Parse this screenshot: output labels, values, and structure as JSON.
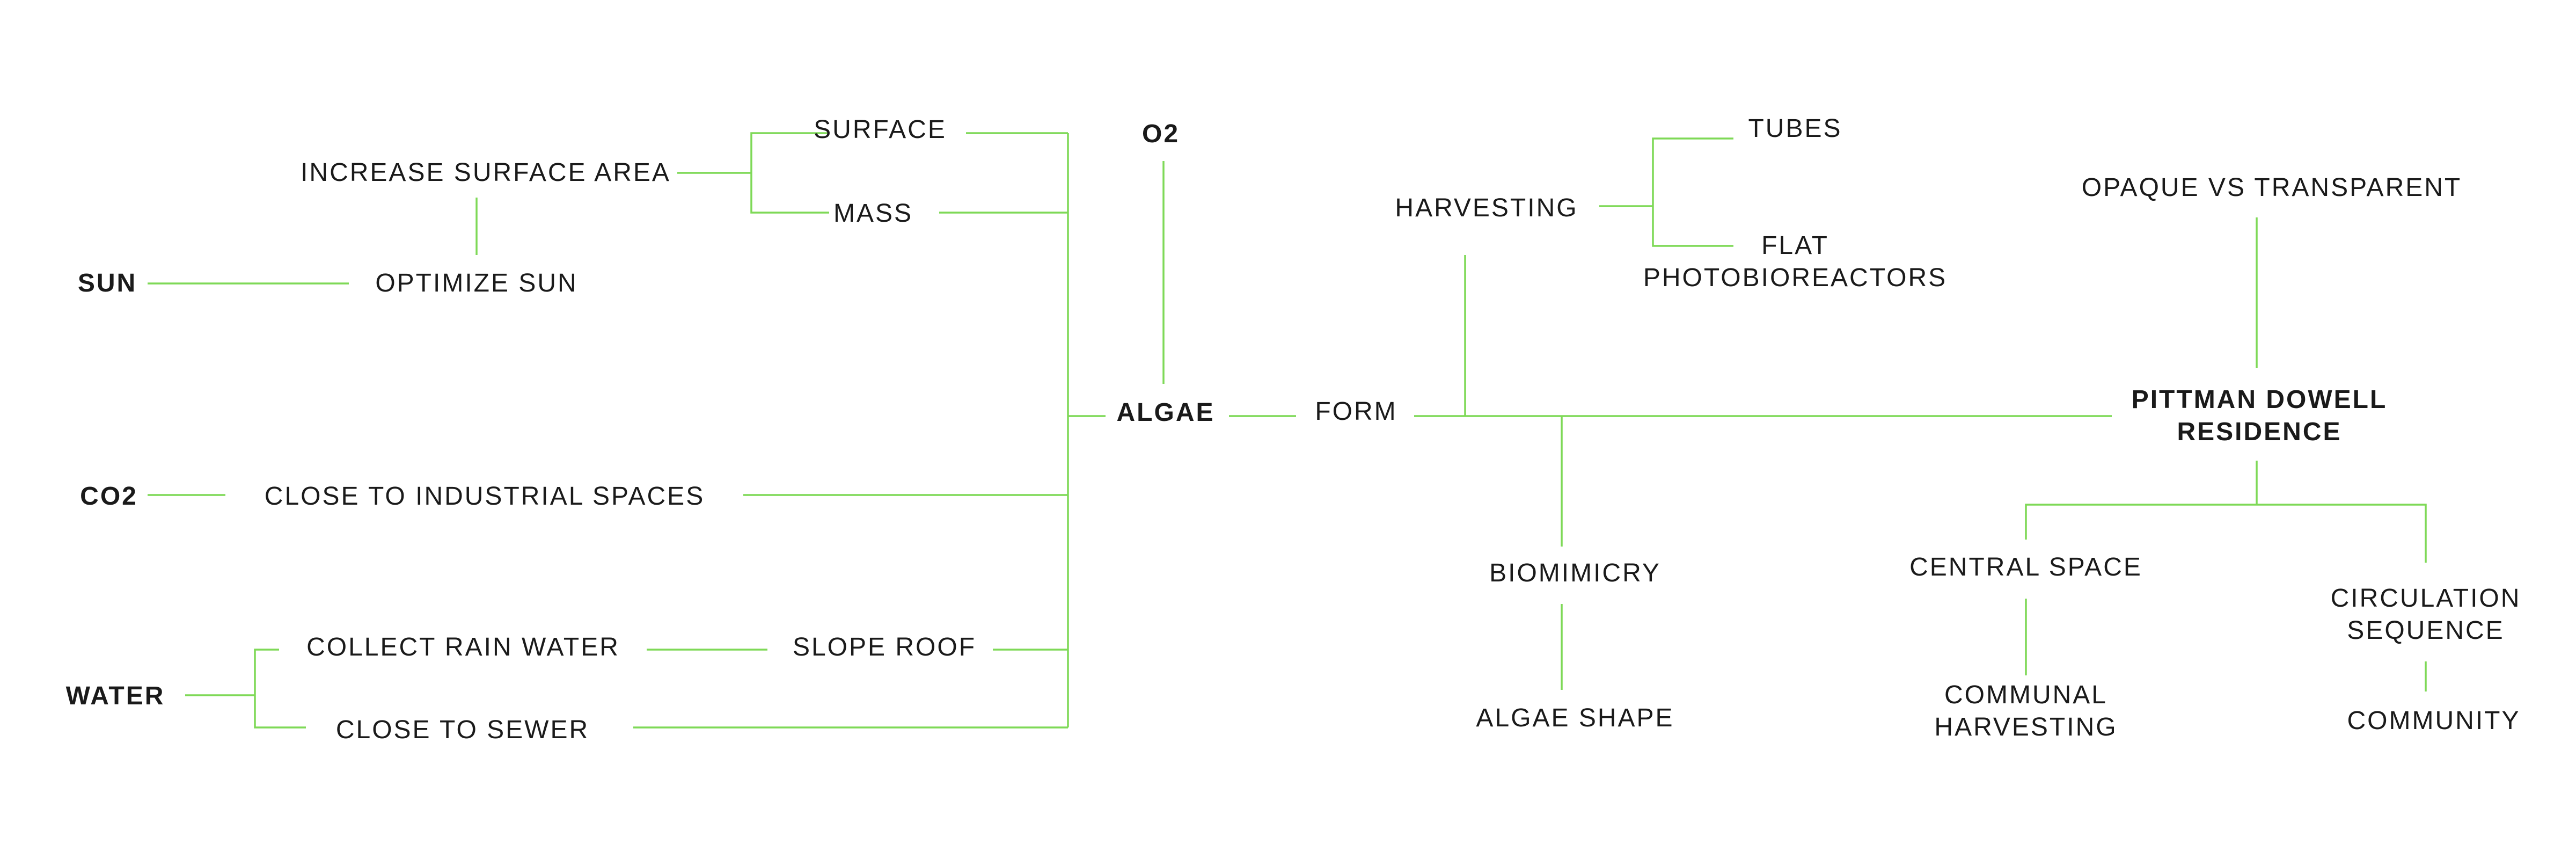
{
  "line_color": "#7ed957",
  "text_color": "#1a1a1a",
  "nodes": {
    "sun": "SUN",
    "optimize_sun": "OPTIMIZE SUN",
    "increase_surface_area": "INCREASE SURFACE AREA",
    "surface": "SURFACE",
    "mass": "MASS",
    "co2": "CO2",
    "close_to_industrial": "CLOSE TO INDUSTRIAL SPACES",
    "water": "WATER",
    "collect_rain_water": "COLLECT RAIN WATER",
    "slope_roof": "SLOPE ROOF",
    "close_to_sewer": "CLOSE TO SEWER",
    "o2": "O2",
    "algae": "ALGAE",
    "form": "FORM",
    "harvesting": "HARVESTING",
    "tubes": "TUBES",
    "flat_line1": "FLAT",
    "flat_line2": "PHOTOBIOREACTORS",
    "biomimicry": "BIOMIMICRY",
    "algae_shape": "ALGAE SHAPE",
    "opaque_vs_transparent": "OPAQUE VS TRANSPARENT",
    "residence_line1": "PITTMAN DOWELL",
    "residence_line2": "RESIDENCE",
    "central_space": "CENTRAL SPACE",
    "communal_line1": "COMMUNAL",
    "communal_line2": "HARVESTING",
    "circulation_line1": "CIRCULATION",
    "circulation_line2": "SEQUENCE",
    "community": "COMMUNITY"
  }
}
